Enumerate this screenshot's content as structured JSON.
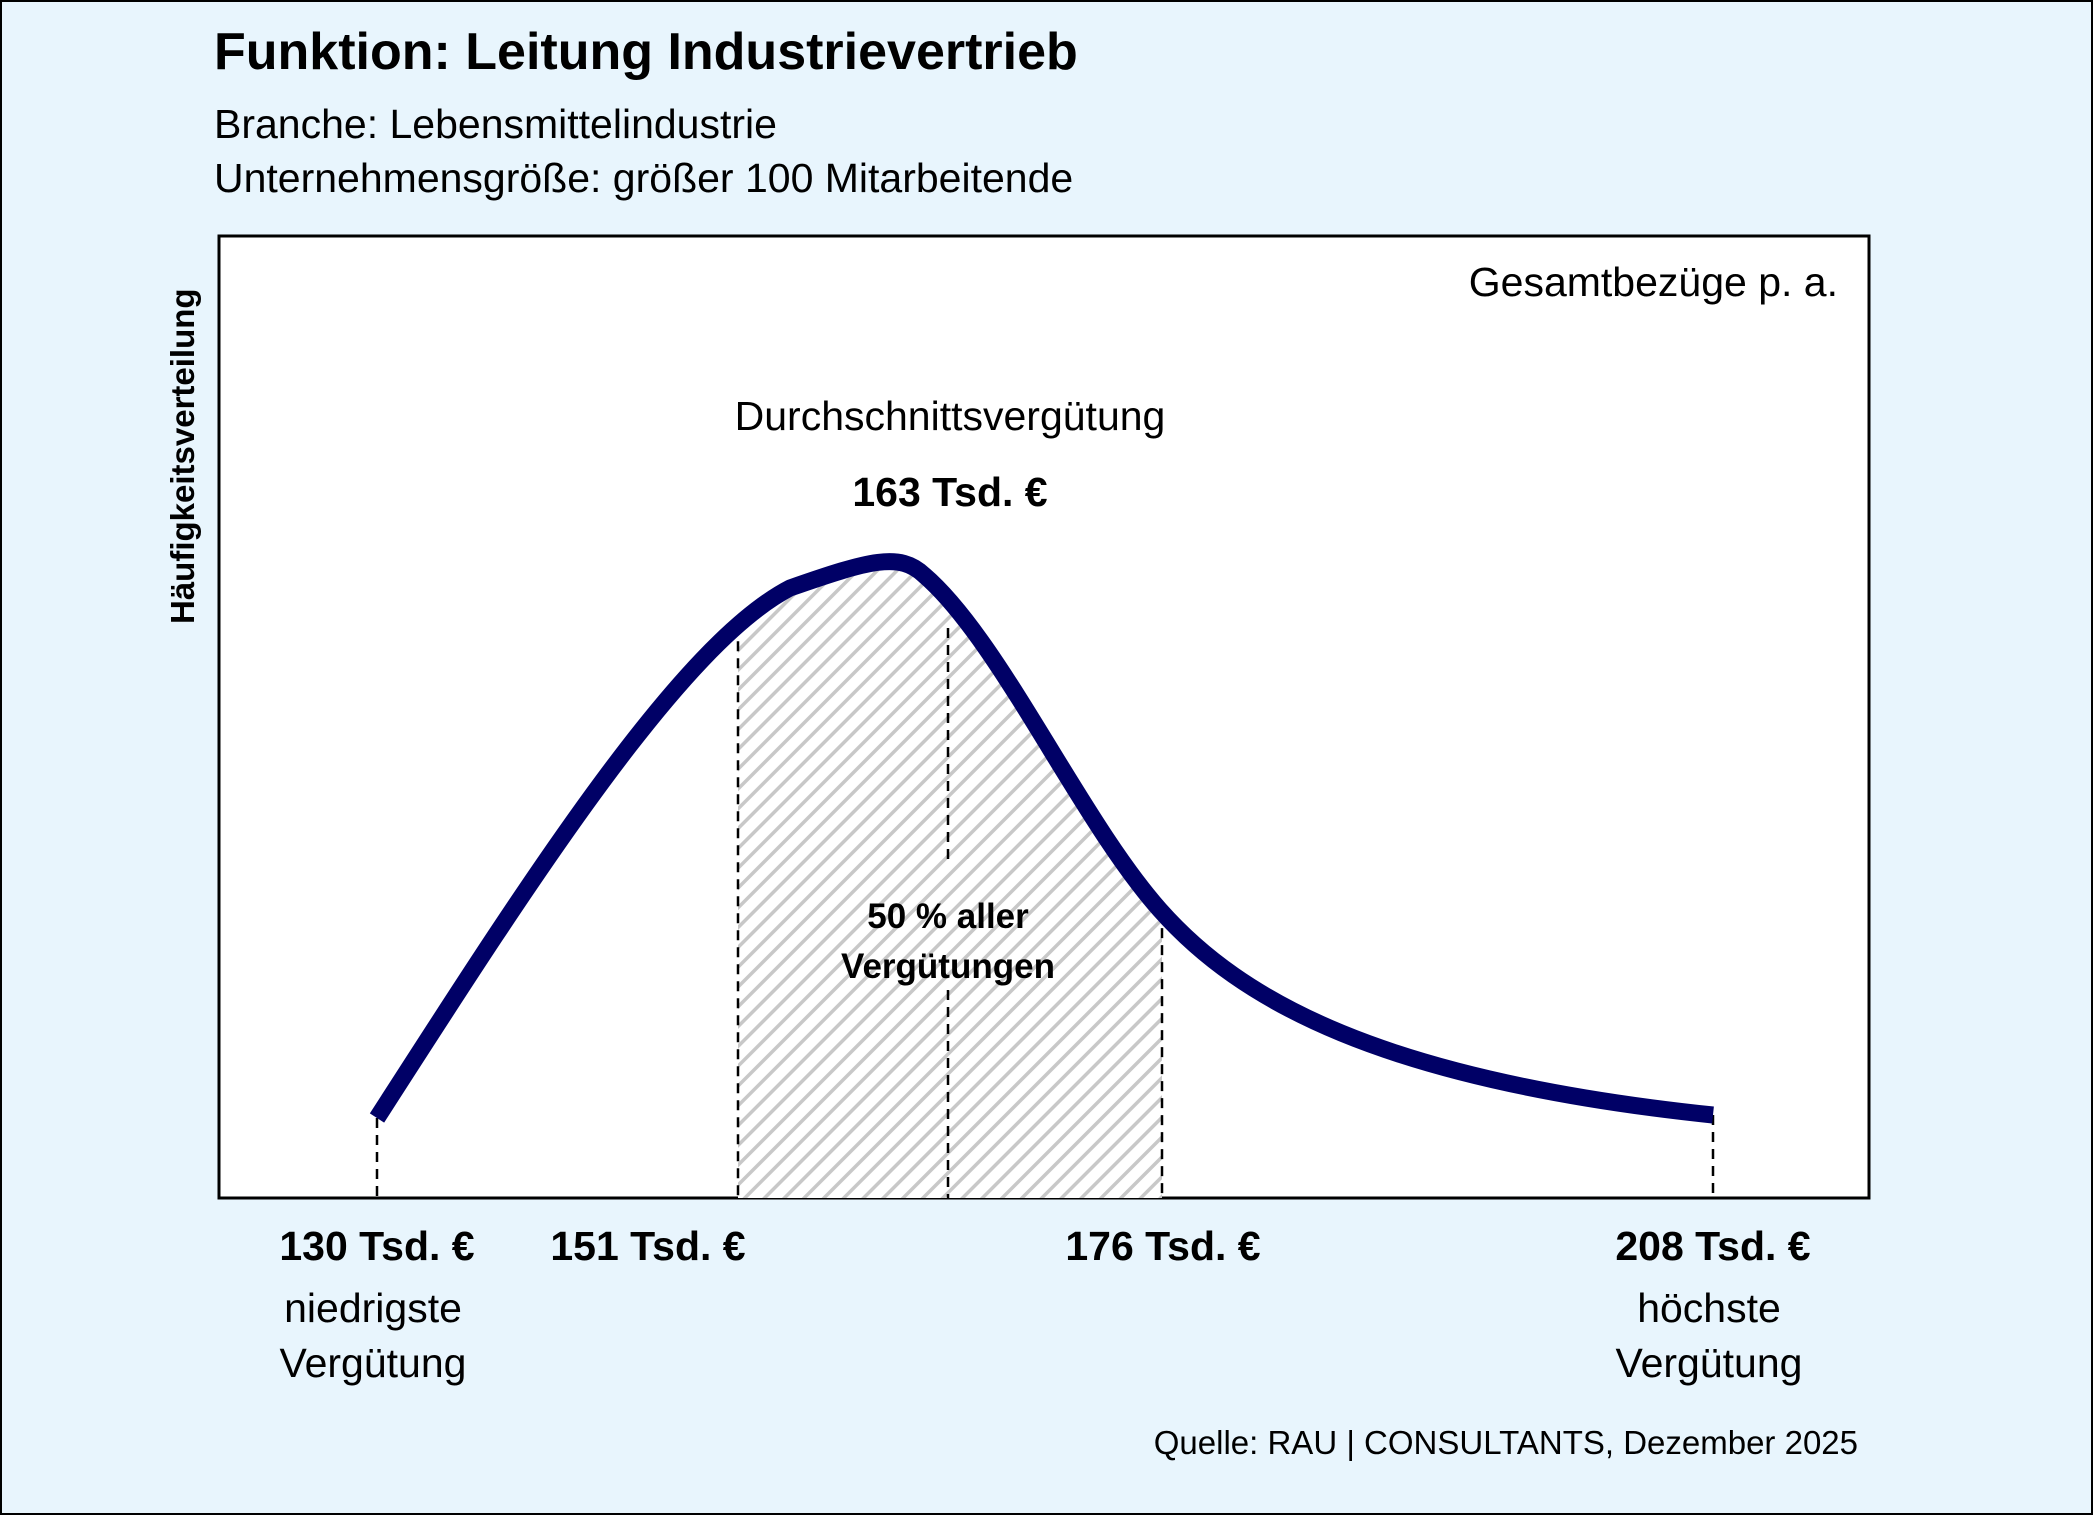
{
  "header": {
    "title": "Funktion: Leitung Industrievertrieb",
    "branche": "Branche: Lebensmittelindustrie",
    "groesse": "Unternehmensgröße: größer 100 Mitarbeitende"
  },
  "chart_data": {
    "type": "area",
    "title": "Funktion: Leitung Industrievertrieb",
    "subtitle": [
      "Branche: Lebensmittelindustrie",
      "Unternehmensgröße: größer 100 Mitarbeitende"
    ],
    "ylabel": "Häufigkeitsverteilung",
    "corner_label": "Gesamtbezüge p. a.",
    "unit": "Tsd. €",
    "markers": [
      {
        "key": "min",
        "value": 130,
        "label": "130 Tsd. €",
        "caption": [
          "niedrigste",
          "Vergütung"
        ]
      },
      {
        "key": "q1",
        "value": 151,
        "label": "151 Tsd. €",
        "caption": []
      },
      {
        "key": "mean",
        "value": 163,
        "label": "163 Tsd. €",
        "caption": [
          "Durchschnittsvergütung"
        ]
      },
      {
        "key": "q3",
        "value": 176,
        "label": "176 Tsd. €",
        "caption": []
      },
      {
        "key": "max",
        "value": 208,
        "label": "208 Tsd. €",
        "caption": [
          "höchste",
          "Vergütung"
        ]
      }
    ],
    "shaded_band": {
      "from": 151,
      "to": 176,
      "label": [
        "50 % aller",
        "Vergütungen"
      ]
    },
    "mean_label": "Durchschnittsvergütung",
    "mean_value_label": "163 Tsd. €",
    "grid": false,
    "colors": {
      "curve": "#000066",
      "hatch": "#c8c8c8",
      "background": "#e8f5fd"
    }
  },
  "footer": {
    "source": "Quelle: RAU | CONSULTANTS, Dezember 2025"
  }
}
